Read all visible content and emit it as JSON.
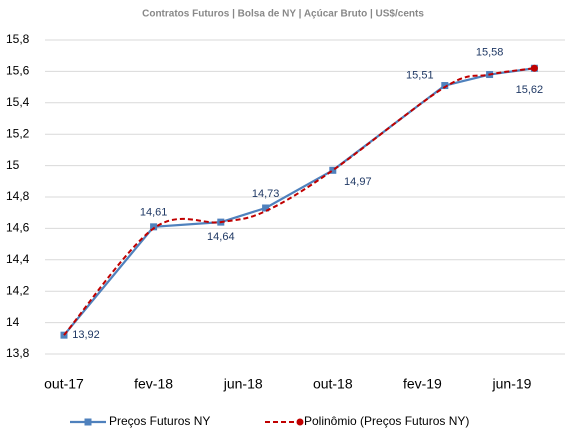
{
  "chart_data": {
    "type": "line",
    "subtitle": "Contratos Futuros | Bolsa de NY | Açúcar Bruto | US$/cents",
    "x": [
      "2017-10",
      "2018-02",
      "2018-05",
      "2018-07",
      "2018-10",
      "2019-03",
      "2019-05",
      "2019-07"
    ],
    "series": [
      {
        "name": "Preços Futuros NY",
        "color": "#4f81bd",
        "values": [
          13.92,
          14.61,
          14.64,
          14.73,
          14.97,
          15.51,
          15.58,
          15.62
        ],
        "value_labels": [
          "13,92",
          "14,61",
          "14,64",
          "14,73",
          "14,97",
          "15,51",
          "15,58",
          "15,62"
        ]
      },
      {
        "name": "Polinômio (Preços Futuros NY)",
        "color": "#c00000",
        "values": [
          13.92,
          14.6,
          14.64,
          14.71,
          14.97,
          15.5,
          15.58,
          15.62
        ]
      }
    ],
    "xlim": [
      "2017-08",
      "2019-08"
    ],
    "xticks": [
      {
        "value": "2017-10",
        "label": "out-17"
      },
      {
        "value": "2018-02",
        "label": "fev-18"
      },
      {
        "value": "2018-06",
        "label": "jun-18"
      },
      {
        "value": "2018-10",
        "label": "out-18"
      },
      {
        "value": "2019-02",
        "label": "fev-19"
      },
      {
        "value": "2019-06",
        "label": "jun-19"
      }
    ],
    "ylim": [
      13.8,
      15.8
    ],
    "yticks": [
      {
        "value": 13.8,
        "label": "13,8"
      },
      14,
      {
        "value": 14.2,
        "label": "14,2"
      },
      {
        "value": 14.4,
        "label": "14,4"
      },
      {
        "value": 14.6,
        "label": "14,6"
      },
      {
        "value": 14.8,
        "label": "14,8"
      },
      15,
      {
        "value": 15.2,
        "label": "15,2"
      },
      {
        "value": 15.4,
        "label": "15,4"
      },
      {
        "value": 15.6,
        "label": "15,6"
      },
      {
        "value": 15.8,
        "label": "15,8"
      }
    ],
    "grid": true
  }
}
